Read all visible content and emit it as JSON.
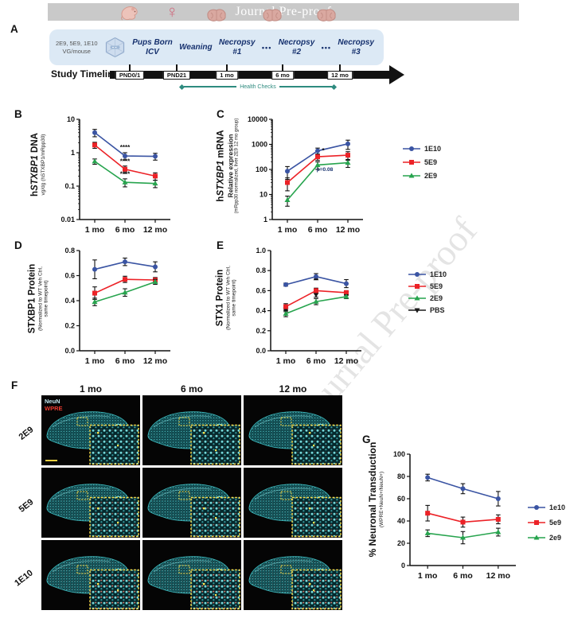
{
  "banner": {
    "text": "Journal Pre-proof"
  },
  "watermark": {
    "text": "Journal Pre-proof"
  },
  "panels": {
    "A": "A",
    "B": "B",
    "C": "C",
    "D": "D",
    "E": "E",
    "F": "F",
    "G": "G"
  },
  "panelA": {
    "dose_line1": "2E9, 5E9, 1E10",
    "dose_line2": "VG/mouse",
    "female_glyph": "♀",
    "stages": [
      {
        "l1": "Pups Born",
        "l2": "ICV"
      },
      {
        "l1": "Weaning",
        "l2": ""
      },
      {
        "l1": "Necropsy",
        "l2": "#1"
      },
      {
        "l1": "Necropsy",
        "l2": "#2"
      },
      {
        "l1": "Necropsy",
        "l2": "#3"
      }
    ],
    "dots": "•••",
    "timeline_label": "Study Timeline",
    "timepoints": [
      "PND0/1",
      "PND21",
      "1 mo",
      "6 mo",
      "12 mo"
    ],
    "health_checks": "Health Checks"
  },
  "chart_titles": {
    "B": {
      "t1": "h",
      "t2": "STXBP1",
      "t3": " DNA",
      "sub": "vg/dg (hSTXBP1/mRpp30)"
    },
    "C": {
      "t1": "h",
      "t2": "STXBP1",
      "t3": " mRNA",
      "sub1": "Relative expression",
      "sub2": "(mRpp30 normalized, liver 2E9 12 mo group)"
    },
    "D": {
      "t": "STXBP1 Protein",
      "sub1": "(Normalized to WT Veh Ctrl,",
      "sub2": "same timepoint)"
    },
    "E": {
      "t": "STX1 Protein",
      "sub1": "(Normalized to WT Veh Ctrl,",
      "sub2": "same timepoint)"
    },
    "G": {
      "t": "% Neuronal Transduction",
      "sub": "(WPRE+NeuN+/NeuN+)"
    }
  },
  "chart_data": [
    {
      "id": "B",
      "type": "line",
      "scale": "log",
      "ylim": [
        0.01,
        10
      ],
      "ml": 34,
      "mr": 22,
      "mt": 8,
      "mb": 26,
      "yticks": [
        {
          "v": 10,
          "label": "10"
        },
        {
          "v": 1,
          "label": "1"
        },
        {
          "v": 0.1,
          "label": "0.1"
        },
        {
          "v": 0.01,
          "label": "0.01"
        }
      ],
      "categories": [
        "1 mo",
        "6 mo",
        "12 mo"
      ],
      "series": [
        {
          "name": "1E10",
          "color": "#3a54a3",
          "marker": "circle",
          "values": [
            4.0,
            0.8,
            0.78
          ],
          "err": [
            1.0,
            0.2,
            0.18
          ]
        },
        {
          "name": "5E9",
          "color": "#ec2227",
          "marker": "square",
          "values": [
            1.7,
            0.32,
            0.2
          ],
          "err": [
            0.35,
            0.08,
            0.05
          ]
        },
        {
          "name": "2E9",
          "color": "#27a44e",
          "marker": "triangle",
          "values": [
            0.55,
            0.13,
            0.12
          ],
          "err": [
            0.1,
            0.035,
            0.03
          ]
        }
      ],
      "annotations": [
        {
          "text": "****",
          "cat": 1,
          "y": 1.25,
          "size": 8
        },
        {
          "text": "****",
          "cat": 1,
          "y": 0.48,
          "size": 8
        },
        {
          "text": "****",
          "cat": 1,
          "y": 0.2,
          "size": 8
        }
      ]
    },
    {
      "id": "C",
      "type": "line",
      "scale": "log",
      "ylim": [
        1,
        10000
      ],
      "ml": 40,
      "mr": 16,
      "mt": 8,
      "mb": 26,
      "yticks": [
        {
          "v": 10000,
          "label": "10000"
        },
        {
          "v": 1000,
          "label": "1000"
        },
        {
          "v": 100,
          "label": "100"
        },
        {
          "v": 10,
          "label": "10"
        },
        {
          "v": 1,
          "label": "1"
        }
      ],
      "categories": [
        "1 mo",
        "6 mo",
        "12 mo"
      ],
      "series": [
        {
          "name": "1E10",
          "color": "#3a54a3",
          "marker": "circle",
          "values": [
            85,
            550,
            1050
          ],
          "err": [
            45,
            160,
            420
          ]
        },
        {
          "name": "5E9",
          "color": "#ec2227",
          "marker": "square",
          "values": [
            30,
            320,
            370
          ],
          "err": [
            16,
            90,
            140
          ]
        },
        {
          "name": "2E9",
          "color": "#27a44e",
          "marker": "triangle",
          "values": [
            6,
            150,
            185
          ],
          "err": [
            2.6,
            50,
            65
          ]
        }
      ],
      "annotations": [
        {
          "text": "*",
          "cat": 1,
          "y": 470,
          "dx": 7,
          "size": 8
        },
        {
          "text": "p=0.08",
          "cat": 1,
          "y": 85,
          "dx": 9,
          "size": 6.5,
          "color": "#16316e"
        }
      ]
    },
    {
      "id": "D",
      "type": "line",
      "scale": "linear",
      "ylim": [
        0,
        0.8
      ],
      "ml": 34,
      "mr": 22,
      "mt": 8,
      "mb": 28,
      "yticks": [
        {
          "v": 0.8,
          "label": "0.8"
        },
        {
          "v": 0.6,
          "label": "0.6"
        },
        {
          "v": 0.4,
          "label": "0.4"
        },
        {
          "v": 0.2,
          "label": "0.2"
        },
        {
          "v": 0.0,
          "label": "0.0"
        }
      ],
      "categories": [
        "1 mo",
        "6 mo",
        "12 mo"
      ],
      "series": [
        {
          "name": "1E10",
          "color": "#3a54a3",
          "marker": "circle",
          "values": [
            0.65,
            0.71,
            0.67
          ],
          "err": [
            0.075,
            0.03,
            0.04
          ]
        },
        {
          "name": "5E9",
          "color": "#ec2227",
          "marker": "square",
          "values": [
            0.46,
            0.57,
            0.565
          ],
          "err": [
            0.05,
            0.025,
            0.02
          ]
        },
        {
          "name": "2E9",
          "color": "#27a44e",
          "marker": "triangle",
          "values": [
            0.39,
            0.465,
            0.55
          ],
          "err": [
            0.03,
            0.03,
            0.02
          ]
        }
      ],
      "annotations": []
    },
    {
      "id": "E",
      "type": "line",
      "scale": "linear",
      "ylim": [
        0,
        1.0
      ],
      "ml": 34,
      "mr": 22,
      "mt": 8,
      "mb": 28,
      "yticks": [
        {
          "v": 1.0,
          "label": "1.0"
        },
        {
          "v": 0.8,
          "label": "0.8"
        },
        {
          "v": 0.6,
          "label": "0.6"
        },
        {
          "v": 0.4,
          "label": "0.4"
        },
        {
          "v": 0.2,
          "label": "0.2"
        },
        {
          "v": 0.0,
          "label": "0.0"
        }
      ],
      "categories": [
        "1 mo",
        "6 mo",
        "12 mo"
      ],
      "series": [
        {
          "name": "PBS",
          "color": "#1a1a1a",
          "marker": "triangle-down",
          "line": false,
          "values": [
            0.41,
            0.56,
            0.57
          ],
          "err": [
            0.02,
            0.025,
            0.02
          ]
        },
        {
          "name": "1E10",
          "color": "#3a54a3",
          "marker": "circle",
          "values": [
            0.66,
            0.74,
            0.67
          ],
          "err": [
            0.015,
            0.03,
            0.04
          ]
        },
        {
          "name": "5E9",
          "color": "#ec2227",
          "marker": "square",
          "values": [
            0.44,
            0.6,
            0.58
          ],
          "err": [
            0.03,
            0.025,
            0.02
          ]
        },
        {
          "name": "2E9",
          "color": "#27a44e",
          "marker": "triangle",
          "values": [
            0.37,
            0.49,
            0.54
          ],
          "err": [
            0.03,
            0.03,
            0.02
          ]
        }
      ],
      "annotations": [
        {
          "text": "**",
          "cat": 1,
          "y": 0.68,
          "size": 8
        }
      ]
    },
    {
      "id": "G",
      "type": "line",
      "scale": "linear",
      "ylim": [
        0,
        100
      ],
      "ml": 34,
      "mr": 38,
      "mt": 8,
      "mb": 26,
      "yticks": [
        {
          "v": 100,
          "label": "100"
        },
        {
          "v": 80,
          "label": "80"
        },
        {
          "v": 60,
          "label": "60"
        },
        {
          "v": 40,
          "label": "40"
        },
        {
          "v": 20,
          "label": "20"
        },
        {
          "v": 0,
          "label": "0"
        }
      ],
      "categories": [
        "1 mo",
        "6 mo",
        "12 mo"
      ],
      "series": [
        {
          "name": "1e10",
          "color": "#3a54a3",
          "marker": "circle",
          "values": [
            79,
            69,
            60
          ],
          "err": [
            3,
            4.5,
            6.5
          ]
        },
        {
          "name": "5e9",
          "color": "#ec2227",
          "marker": "square",
          "values": [
            47,
            39,
            41.5
          ],
          "err": [
            7,
            4.5,
            4
          ]
        },
        {
          "name": "2e9",
          "color": "#27a44e",
          "marker": "triangle",
          "values": [
            29,
            25,
            30
          ],
          "err": [
            3,
            5.5,
            3.5
          ]
        }
      ],
      "annotations": []
    }
  ],
  "legends": {
    "BC": [
      {
        "label": "1E10",
        "color": "#3a54a3",
        "marker": "circle"
      },
      {
        "label": "5E9",
        "color": "#ec2227",
        "marker": "square"
      },
      {
        "label": "2E9",
        "color": "#27a44e",
        "marker": "triangle"
      }
    ],
    "E": [
      {
        "label": "1E10",
        "color": "#3a54a3",
        "marker": "circle"
      },
      {
        "label": "5E9",
        "color": "#ec2227",
        "marker": "square"
      },
      {
        "label": "2E9",
        "color": "#27a44e",
        "marker": "triangle"
      },
      {
        "label": "PBS",
        "color": "#1a1a1a",
        "marker": "triangle-down"
      }
    ],
    "G": [
      {
        "label": "1e10",
        "color": "#3a54a3",
        "marker": "circle"
      },
      {
        "label": "5e9",
        "color": "#ec2227",
        "marker": "square"
      },
      {
        "label": "2e9",
        "color": "#27a44e",
        "marker": "triangle"
      }
    ]
  },
  "panelF": {
    "col_headers": [
      "1 mo",
      "6 mo",
      "12 mo"
    ],
    "row_labels": [
      "2E9",
      "5E9",
      "1E10"
    ],
    "stains": [
      {
        "text": "NeuN",
        "color": "#c4e9f2"
      },
      {
        "text": "WPRE",
        "color": "#ee3b30"
      }
    ]
  }
}
